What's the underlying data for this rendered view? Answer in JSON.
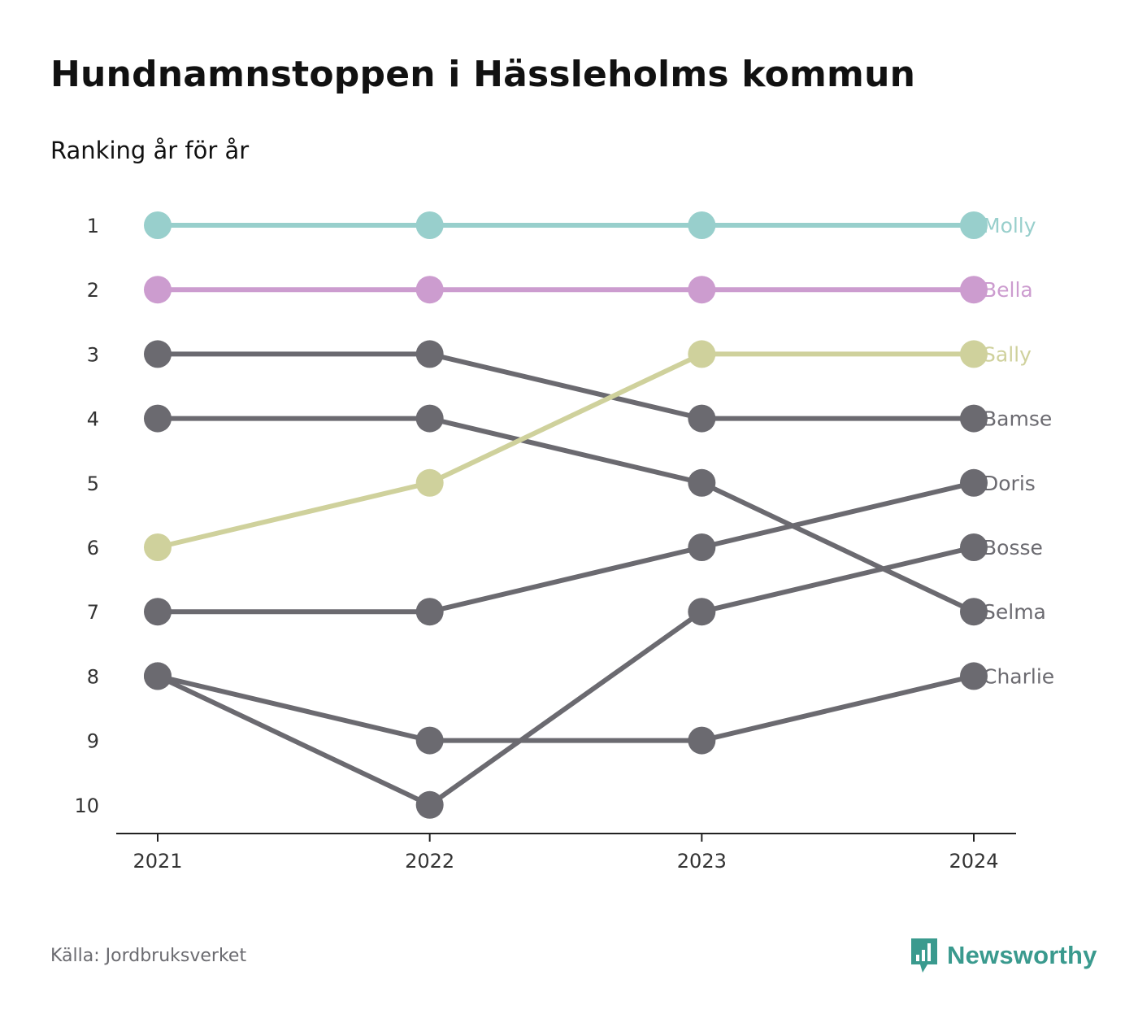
{
  "title": "Hundnamnstoppen i Hässleholms kommun",
  "subtitle": "Ranking år för år",
  "source": "Källa: Jordbruksverket",
  "brand": {
    "name": "Newsworthy",
    "icon": "newsworthy-logo-icon",
    "color": "#3a9a8e"
  },
  "chart_data": {
    "type": "line",
    "subtype": "bump",
    "x": [
      "2021",
      "2022",
      "2023",
      "2024"
    ],
    "y_ticks": [
      "1",
      "2",
      "3",
      "4",
      "5",
      "6",
      "7",
      "8",
      "9",
      "10"
    ],
    "y_inverted": true,
    "ylim": [
      1,
      10
    ],
    "grid": false,
    "series": [
      {
        "name": "Molly",
        "values": [
          1,
          1,
          1,
          1
        ],
        "color": "#98cfcc"
      },
      {
        "name": "Bella",
        "values": [
          2,
          2,
          2,
          2
        ],
        "color": "#cc9ccf"
      },
      {
        "name": "Sally",
        "values": [
          6,
          5,
          3,
          3
        ],
        "color": "#cfd19c"
      },
      {
        "name": "Bamse",
        "values": [
          3,
          3,
          4,
          4
        ],
        "color": "#6b6a70"
      },
      {
        "name": "Doris",
        "values": [
          7,
          7,
          6,
          5
        ],
        "color": "#6b6a70"
      },
      {
        "name": "Bosse",
        "values": [
          8,
          10,
          7,
          6
        ],
        "color": "#6b6a70"
      },
      {
        "name": "Selma",
        "values": [
          4,
          4,
          5,
          7
        ],
        "color": "#6b6a70"
      },
      {
        "name": "Charlie",
        "values": [
          8,
          9,
          9,
          8
        ],
        "color": "#6b6a70"
      }
    ]
  }
}
